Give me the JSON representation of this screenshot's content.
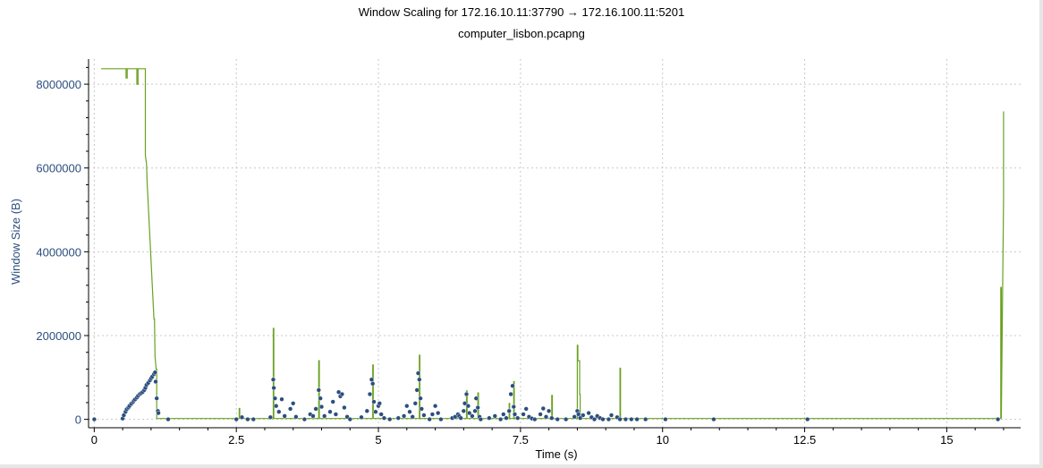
{
  "chart_data": {
    "type": "line",
    "title": "Window Scaling for 172.16.10.11:37790 → 172.16.100.11:5201",
    "subtitle": "computer_lisbon.pcapng",
    "xlabel": "Time (s)",
    "ylabel": "Window Size (B)",
    "xlim": [
      -0.1,
      16.3
    ],
    "ylim": [
      -200000,
      8600000
    ],
    "x_ticks": [
      0,
      2.5,
      5,
      7.5,
      10,
      12.5,
      15
    ],
    "x_tick_labels": [
      "0",
      "2.5",
      "5",
      "7.5",
      "10",
      "12.5",
      "15"
    ],
    "y_ticks": [
      0,
      2000000,
      4000000,
      6000000,
      8000000
    ],
    "y_tick_labels": [
      "0",
      "2000000",
      "4000000",
      "6000000",
      "8000000"
    ],
    "grid": true,
    "colors": {
      "window": "#6aa121",
      "bytes_out": "#2b4e7e",
      "grid": "#c8c8c8",
      "axis": "#000000"
    },
    "series": [
      {
        "id": "window",
        "kind": "line",
        "x": [
          0.12,
          0.5,
          0.56,
          0.56,
          0.58,
          0.58,
          0.75,
          0.75,
          0.77,
          0.77,
          0.9,
          0.9,
          0.92,
          0.93,
          1.05,
          1.06,
          1.07,
          1.09,
          1.1,
          1.1,
          2.3,
          2.55,
          2.55,
          2.56,
          2.56,
          3.15,
          3.15,
          3.16,
          3.16,
          3.95,
          3.95,
          3.96,
          3.96,
          4.9,
          4.9,
          4.91,
          4.91,
          5.72,
          5.72,
          5.73,
          5.73,
          6.55,
          6.55,
          6.56,
          6.56,
          6.75,
          6.75,
          6.76,
          6.76,
          7.3,
          7.3,
          7.31,
          7.31,
          7.38,
          7.38,
          7.39,
          7.39,
          8.05,
          8.05,
          8.06,
          8.06,
          8.5,
          8.5,
          8.51,
          8.51,
          8.54,
          8.54,
          8.55,
          8.55,
          9.25,
          9.25,
          9.26,
          9.26,
          15.95,
          15.95,
          15.96,
          15.96,
          16.0,
          16.0,
          16.0
        ],
        "values": [
          8370000,
          8370000,
          8370000,
          8150000,
          8150000,
          8370000,
          8370000,
          8000000,
          8000000,
          8370000,
          8370000,
          6300000,
          6100000,
          5700000,
          2400000,
          2400000,
          1500000,
          1200000,
          1200000,
          20000,
          20000,
          20000,
          260000,
          260000,
          20000,
          20000,
          2170000,
          2170000,
          20000,
          20000,
          1400000,
          1400000,
          20000,
          20000,
          1300000,
          1300000,
          20000,
          20000,
          1530000,
          1530000,
          20000,
          20000,
          680000,
          680000,
          20000,
          20000,
          630000,
          630000,
          20000,
          20000,
          380000,
          380000,
          20000,
          20000,
          900000,
          900000,
          20000,
          20000,
          570000,
          570000,
          20000,
          20000,
          1770000,
          1770000,
          1400000,
          1400000,
          600000,
          600000,
          20000,
          20000,
          1220000,
          1220000,
          20000,
          20000,
          3150000,
          3150000,
          20000,
          5250000,
          7350000,
          5250000
        ]
      },
      {
        "id": "bytes_out",
        "kind": "scatter",
        "points": [
          [
            0,
            0
          ],
          [
            0.5,
            20000
          ],
          [
            0.52,
            100000
          ],
          [
            0.55,
            180000
          ],
          [
            0.57,
            240000
          ],
          [
            0.6,
            280000
          ],
          [
            0.62,
            320000
          ],
          [
            0.65,
            370000
          ],
          [
            0.68,
            410000
          ],
          [
            0.7,
            450000
          ],
          [
            0.72,
            480000
          ],
          [
            0.75,
            520000
          ],
          [
            0.77,
            560000
          ],
          [
            0.8,
            600000
          ],
          [
            0.82,
            620000
          ],
          [
            0.85,
            650000
          ],
          [
            0.88,
            700000
          ],
          [
            0.9,
            750000
          ],
          [
            0.92,
            820000
          ],
          [
            0.95,
            870000
          ],
          [
            0.98,
            930000
          ],
          [
            1.0,
            980000
          ],
          [
            1.02,
            1020000
          ],
          [
            1.05,
            1080000
          ],
          [
            1.07,
            1120000
          ],
          [
            1.08,
            900000
          ],
          [
            1.1,
            500000
          ],
          [
            1.12,
            200000
          ],
          [
            1.13,
            150000
          ],
          [
            1.3,
            0
          ],
          [
            2.5,
            0
          ],
          [
            2.6,
            50000
          ],
          [
            2.7,
            0
          ],
          [
            2.8,
            0
          ],
          [
            3.1,
            50000
          ],
          [
            3.15,
            950000
          ],
          [
            3.16,
            750000
          ],
          [
            3.18,
            500000
          ],
          [
            3.2,
            320000
          ],
          [
            3.25,
            180000
          ],
          [
            3.3,
            480000
          ],
          [
            3.35,
            80000
          ],
          [
            3.45,
            250000
          ],
          [
            3.5,
            380000
          ],
          [
            3.55,
            60000
          ],
          [
            3.7,
            0
          ],
          [
            3.8,
            120000
          ],
          [
            3.85,
            80000
          ],
          [
            3.9,
            250000
          ],
          [
            3.95,
            700000
          ],
          [
            3.98,
            500000
          ],
          [
            4.0,
            300000
          ],
          [
            4.05,
            80000
          ],
          [
            4.15,
            180000
          ],
          [
            4.2,
            420000
          ],
          [
            4.25,
            120000
          ],
          [
            4.3,
            650000
          ],
          [
            4.33,
            550000
          ],
          [
            4.36,
            600000
          ],
          [
            4.4,
            280000
          ],
          [
            4.45,
            60000
          ],
          [
            4.5,
            0
          ],
          [
            4.7,
            50000
          ],
          [
            4.8,
            200000
          ],
          [
            4.85,
            600000
          ],
          [
            4.88,
            950000
          ],
          [
            4.9,
            850000
          ],
          [
            4.92,
            420000
          ],
          [
            4.95,
            180000
          ],
          [
            5.0,
            320000
          ],
          [
            5.02,
            380000
          ],
          [
            5.05,
            120000
          ],
          [
            5.1,
            30000
          ],
          [
            5.2,
            0
          ],
          [
            5.35,
            30000
          ],
          [
            5.45,
            80000
          ],
          [
            5.5,
            320000
          ],
          [
            5.55,
            180000
          ],
          [
            5.6,
            60000
          ],
          [
            5.65,
            380000
          ],
          [
            5.68,
            700000
          ],
          [
            5.7,
            1100000
          ],
          [
            5.72,
            950000
          ],
          [
            5.74,
            500000
          ],
          [
            5.76,
            250000
          ],
          [
            5.8,
            100000
          ],
          [
            5.9,
            0
          ],
          [
            5.95,
            120000
          ],
          [
            6.0,
            320000
          ],
          [
            6.05,
            150000
          ],
          [
            6.1,
            0
          ],
          [
            6.3,
            30000
          ],
          [
            6.35,
            60000
          ],
          [
            6.4,
            120000
          ],
          [
            6.42,
            80000
          ],
          [
            6.45,
            30000
          ],
          [
            6.5,
            200000
          ],
          [
            6.52,
            380000
          ],
          [
            6.55,
            600000
          ],
          [
            6.58,
            320000
          ],
          [
            6.6,
            150000
          ],
          [
            6.65,
            80000
          ],
          [
            6.7,
            200000
          ],
          [
            6.72,
            500000
          ],
          [
            6.75,
            280000
          ],
          [
            6.78,
            60000
          ],
          [
            6.8,
            0
          ],
          [
            6.95,
            30000
          ],
          [
            7.05,
            80000
          ],
          [
            7.15,
            0
          ],
          [
            7.2,
            120000
          ],
          [
            7.25,
            30000
          ],
          [
            7.3,
            200000
          ],
          [
            7.33,
            600000
          ],
          [
            7.36,
            800000
          ],
          [
            7.38,
            300000
          ],
          [
            7.4,
            120000
          ],
          [
            7.45,
            30000
          ],
          [
            7.55,
            120000
          ],
          [
            7.6,
            250000
          ],
          [
            7.65,
            60000
          ],
          [
            7.7,
            20000
          ],
          [
            7.75,
            0
          ],
          [
            7.85,
            120000
          ],
          [
            7.9,
            260000
          ],
          [
            7.95,
            60000
          ],
          [
            8.0,
            200000
          ],
          [
            8.05,
            30000
          ],
          [
            8.15,
            0
          ],
          [
            8.3,
            0
          ],
          [
            8.45,
            60000
          ],
          [
            8.5,
            200000
          ],
          [
            8.52,
            120000
          ],
          [
            8.55,
            30000
          ],
          [
            8.6,
            100000
          ],
          [
            8.7,
            150000
          ],
          [
            8.75,
            50000
          ],
          [
            8.8,
            0
          ],
          [
            8.85,
            80000
          ],
          [
            8.9,
            30000
          ],
          [
            8.95,
            0
          ],
          [
            9.05,
            0
          ],
          [
            9.1,
            100000
          ],
          [
            9.2,
            50000
          ],
          [
            9.25,
            0
          ],
          [
            9.35,
            0
          ],
          [
            9.45,
            0
          ],
          [
            9.55,
            0
          ],
          [
            9.7,
            0
          ],
          [
            10.05,
            0
          ],
          [
            10.9,
            0
          ],
          [
            12.55,
            0
          ],
          [
            15.9,
            0
          ]
        ]
      }
    ]
  }
}
